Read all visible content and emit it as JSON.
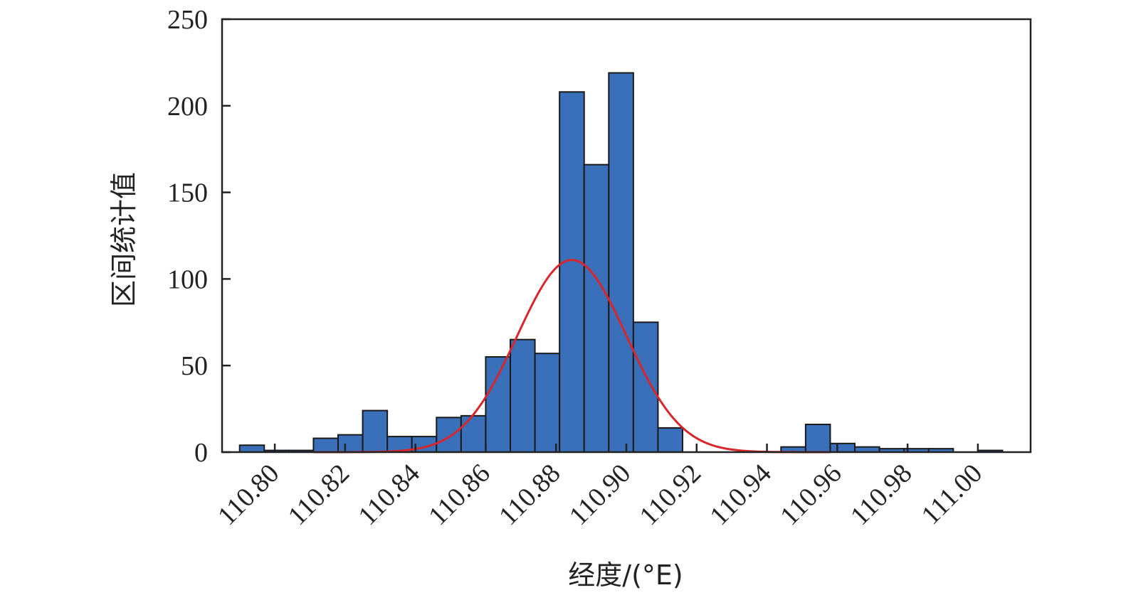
{
  "chart_data": {
    "type": "bar",
    "title": "",
    "xlabel": "经度/(°E)",
    "ylabel": "区间统计值",
    "xlim": [
      110.785,
      111.015
    ],
    "ylim": [
      0,
      250
    ],
    "x_ticks": [
      "110.80",
      "110.82",
      "110.84",
      "110.86",
      "110.88",
      "110.90",
      "110.92",
      "110.94",
      "110.96",
      "110.98",
      "111.00"
    ],
    "x_tick_values": [
      110.8,
      110.82,
      110.84,
      110.86,
      110.88,
      110.9,
      110.92,
      110.94,
      110.96,
      110.98,
      111.0
    ],
    "y_ticks": [
      "0",
      "50",
      "100",
      "150",
      "200",
      "250"
    ],
    "y_tick_values": [
      0,
      50,
      100,
      150,
      200,
      250
    ],
    "bin_width": 0.007,
    "bins": [
      {
        "start": 110.79,
        "value": 4
      },
      {
        "start": 110.797,
        "value": 1
      },
      {
        "start": 110.804,
        "value": 1
      },
      {
        "start": 110.811,
        "value": 8
      },
      {
        "start": 110.818,
        "value": 10
      },
      {
        "start": 110.825,
        "value": 24
      },
      {
        "start": 110.832,
        "value": 9
      },
      {
        "start": 110.839,
        "value": 9
      },
      {
        "start": 110.846,
        "value": 20
      },
      {
        "start": 110.853,
        "value": 21
      },
      {
        "start": 110.86,
        "value": 55
      },
      {
        "start": 110.867,
        "value": 65
      },
      {
        "start": 110.874,
        "value": 57
      },
      {
        "start": 110.881,
        "value": 208
      },
      {
        "start": 110.888,
        "value": 166
      },
      {
        "start": 110.895,
        "value": 219
      },
      {
        "start": 110.902,
        "value": 75
      },
      {
        "start": 110.909,
        "value": 14
      },
      {
        "start": 110.916,
        "value": 0
      },
      {
        "start": 110.923,
        "value": 0
      },
      {
        "start": 110.93,
        "value": 0
      },
      {
        "start": 110.937,
        "value": 0
      },
      {
        "start": 110.944,
        "value": 3
      },
      {
        "start": 110.951,
        "value": 16
      },
      {
        "start": 110.958,
        "value": 5
      },
      {
        "start": 110.965,
        "value": 3
      },
      {
        "start": 110.972,
        "value": 2
      },
      {
        "start": 110.979,
        "value": 2
      },
      {
        "start": 110.986,
        "value": 2
      },
      {
        "start": 110.993,
        "value": 0
      },
      {
        "start": 111.0,
        "value": 1
      }
    ],
    "fit_curve": {
      "type": "normal",
      "mean": 110.8845,
      "std": 0.0155,
      "peak": 111,
      "x_range": [
        110.811,
        110.958
      ]
    },
    "grid": false,
    "colors": {
      "bar_fill": "#3a6fba",
      "bar_stroke": "#1a1a1a",
      "curve": "#d8262d",
      "axis": "#222222"
    }
  }
}
